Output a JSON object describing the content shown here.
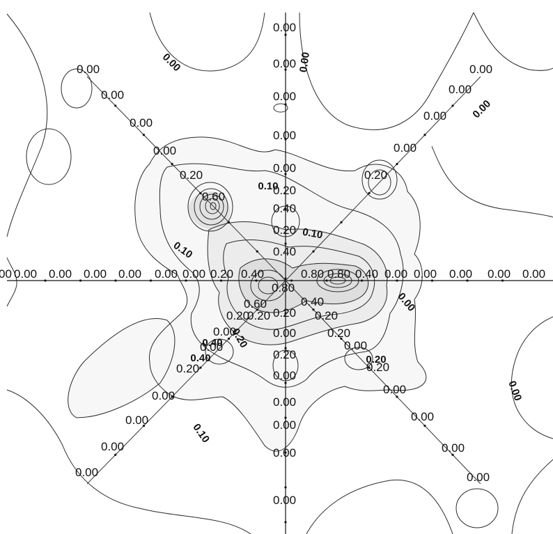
{
  "chart_data": {
    "type": "contour",
    "title": "",
    "xlabel": "",
    "ylabel": "",
    "colors": {
      "band_light": "#f7f7f7",
      "band_mid": "#ececec",
      "band_dark": "#dedede",
      "line": "#2a2a2a"
    },
    "contour_levels": [
      "0.00",
      "0.10",
      "0.20",
      "0.40",
      "0.60",
      "0.80"
    ],
    "probe_lines": [
      {
        "name": "horizontal",
        "point_labels": [
          "00",
          "0.00",
          "0.00",
          "0.00",
          "0.00",
          "0.00",
          "0.00",
          "0.20",
          "0.40",
          "0.80",
          "0.80",
          "0.40",
          "0.00",
          "0.00",
          "0.00",
          "0.00",
          "0.00"
        ]
      },
      {
        "name": "vertical",
        "point_labels": [
          "0.00",
          "0.00",
          "0.00",
          "0.00",
          "0.00",
          "0.20",
          "0.40",
          "0.20",
          "0.40",
          "0.80",
          "0.20",
          "0.20",
          "0.00",
          "0.20",
          "0.00",
          "0.00",
          "0.00",
          "0.00",
          "0.00"
        ]
      },
      {
        "name": "diagonal-upper-left",
        "point_labels": [
          "0.00",
          "0.00",
          "0.00",
          "0.00",
          "0.20",
          "0.60"
        ]
      },
      {
        "name": "diagonal-upper-right",
        "point_labels": [
          "0.00",
          "0.00",
          "0.00",
          "0.00",
          "0.20"
        ]
      },
      {
        "name": "diagonal-lower-left",
        "point_labels": [
          "0.60",
          "0.20",
          "0.00",
          "0.00",
          "0.20",
          "0.00",
          "0.00",
          "0.00",
          "0.00"
        ]
      },
      {
        "name": "diagonal-lower-right",
        "point_labels": [
          "0.40",
          "0.20",
          "0.20",
          "0.00",
          "0.20",
          "0.00",
          "0.00",
          "0.00",
          "0.00"
        ]
      }
    ],
    "contour_line_labels": [
      "0.00",
      "0.00",
      "0.00",
      "0.00",
      "0.00",
      "0.10",
      "0.10",
      "0.10",
      "0.10",
      "0.20",
      "0.20",
      "0.40",
      "0.40"
    ]
  }
}
